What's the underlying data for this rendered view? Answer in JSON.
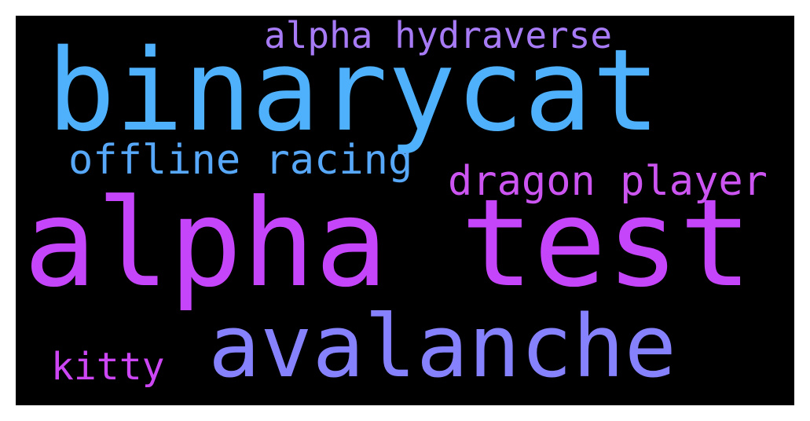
{
  "background": "#000000",
  "words": [
    {
      "key": "binarycat",
      "text": "binarycat",
      "color": "#4fb0fc"
    },
    {
      "key": "alpha_hydraverse",
      "text": "alpha hydraverse",
      "color": "#a87bf6"
    },
    {
      "key": "offline_racing",
      "text": "offline racing",
      "color": "#58a8fa"
    },
    {
      "key": "dragon_player",
      "text": "dragon player",
      "color": "#cc55f2"
    },
    {
      "key": "alpha_test",
      "text": "alpha test",
      "color": "#c545fb"
    },
    {
      "key": "avalanche",
      "text": "avalanche",
      "color": "#8681fd"
    },
    {
      "key": "kitty",
      "text": "kitty",
      "color": "#cc46f3"
    }
  ]
}
